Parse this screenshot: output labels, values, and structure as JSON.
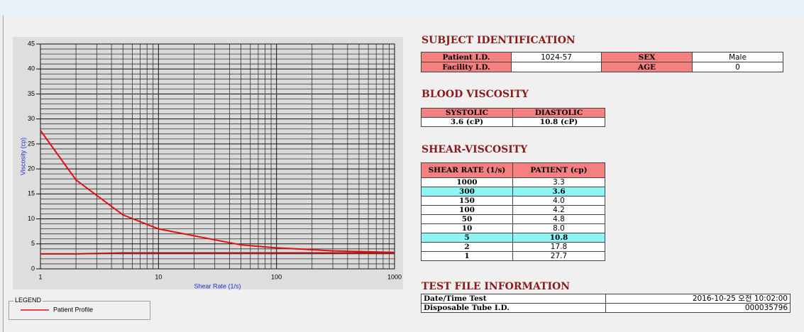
{
  "chart_data": {
    "type": "line",
    "x_label": "Shear Rate (1/s)",
    "y_label": "Viscosity (cp)",
    "x": [
      1,
      2,
      5,
      10,
      50,
      100,
      150,
      300,
      1000
    ],
    "series": [
      {
        "name": "Patient Profile",
        "color": "#e01010",
        "values": [
          27.7,
          17.8,
          10.8,
          8.0,
          4.8,
          4.2,
          4.0,
          3.6,
          3.3
        ]
      },
      {
        "color": "#b01818",
        "values": [
          3.0,
          3.0,
          3.2,
          3.2,
          3.2,
          3.2,
          3.2,
          3.2,
          3.2
        ]
      }
    ],
    "xlim": [
      1,
      1000
    ],
    "ylim": [
      0,
      45
    ],
    "log_x": true,
    "grid": true,
    "xticks": [
      1,
      10,
      100,
      1000
    ],
    "yticks": [
      0,
      5,
      10,
      15,
      20,
      25,
      30,
      35,
      40,
      45
    ],
    "xminorticks": [
      2,
      3,
      4,
      5,
      6,
      7,
      8,
      9,
      20,
      30,
      40,
      50,
      60,
      70,
      80,
      90,
      200,
      300,
      400,
      500,
      600,
      700,
      800,
      900
    ],
    "yminorticks": [
      1,
      2,
      3,
      4,
      6,
      7,
      8,
      9,
      11,
      12,
      13,
      14,
      16,
      17,
      18,
      19,
      21,
      22,
      23,
      24,
      26,
      27,
      28,
      29,
      31,
      32,
      33,
      34,
      36,
      37,
      38,
      39,
      41,
      42,
      43,
      44
    ],
    "legend_title": "LEGEND"
  },
  "subject_identification": {
    "title": "SUBJECT IDENTIFICATION",
    "rows": [
      [
        "Patient I.D.",
        "1024-57",
        "SEX",
        "Male"
      ],
      [
        "Facility I.D.",
        null,
        "AGE",
        "0"
      ]
    ]
  },
  "blood_viscosity": {
    "title": "BLOOD VISCOSITY",
    "header": [
      "SYSTOLIC",
      "DIASTOLIC"
    ],
    "values": [
      "3.6 (cP)",
      "10.8 (cP)"
    ]
  },
  "shear_viscosity": {
    "title": "SHEAR-VISCOSITY",
    "header": [
      "SHEAR RATE (1/s)",
      "PATIENT (cp)"
    ],
    "rows": [
      {
        "rate": "1000",
        "patient": "3.3"
      },
      {
        "rate": "300",
        "patient": "3.6",
        "highlight": true
      },
      {
        "rate": "150",
        "patient": "4.0"
      },
      {
        "rate": "100",
        "patient": "4.2"
      },
      {
        "rate": "50",
        "patient": "4.8"
      },
      {
        "rate": "10",
        "patient": "8.0"
      },
      {
        "rate": "5",
        "patient": "10.8",
        "highlight": true
      },
      {
        "rate": "2",
        "patient": "17.8"
      },
      {
        "rate": "1",
        "patient": "27.7"
      }
    ]
  },
  "test_file_information": {
    "title": "TEST FILE INFORMATION",
    "rows": [
      [
        "Date/Time Test",
        "2016-10-25 오전 10:02:00"
      ],
      [
        "Disposable Tube I.D.",
        "000035796"
      ]
    ]
  }
}
